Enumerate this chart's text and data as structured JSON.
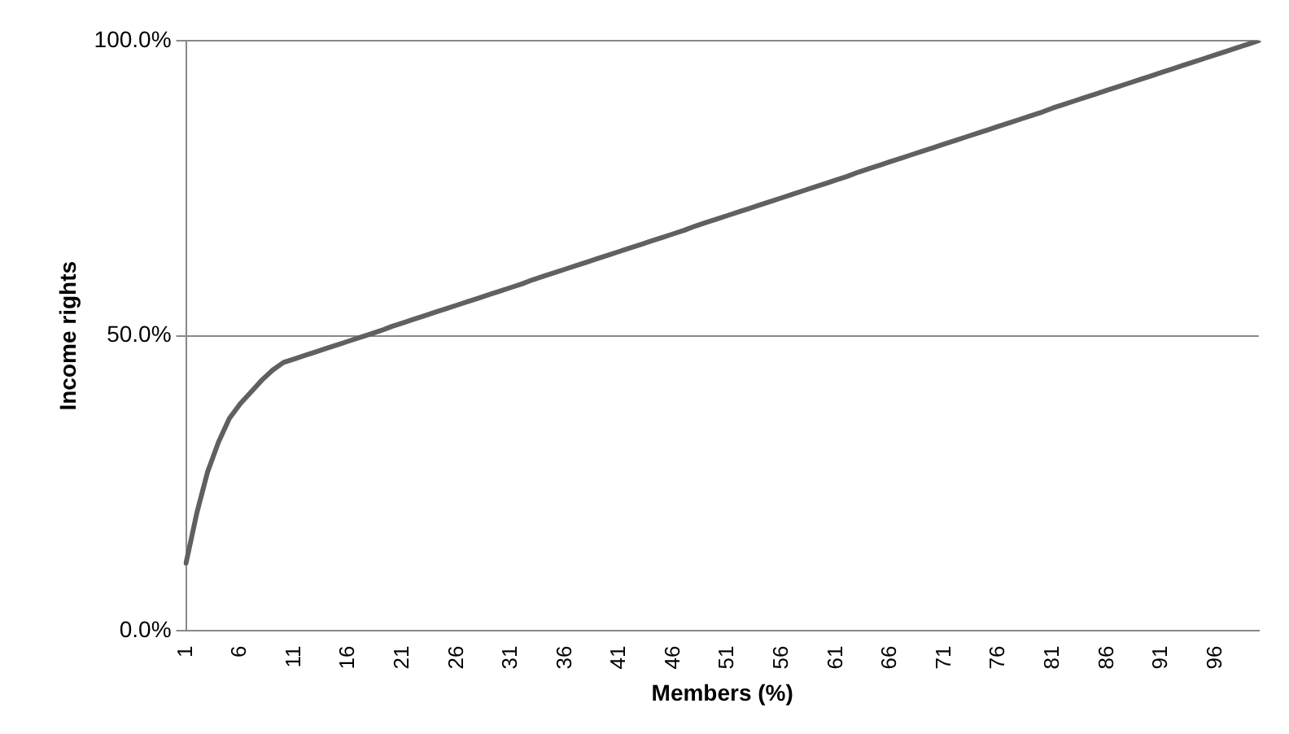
{
  "chart_data": {
    "type": "line",
    "xlabel": "Members (%)",
    "ylabel": "Income rights",
    "categories": [
      "1",
      null,
      null,
      null,
      null,
      "6",
      null,
      null,
      null,
      null,
      "11",
      null,
      null,
      null,
      null,
      "16",
      null,
      null,
      null,
      null,
      "21",
      null,
      null,
      null,
      null,
      "26",
      null,
      null,
      null,
      null,
      "31",
      null,
      null,
      null,
      null,
      "36",
      null,
      null,
      null,
      null,
      "41",
      null,
      null,
      null,
      null,
      "46",
      null,
      null,
      null,
      null,
      "51",
      null,
      null,
      null,
      null,
      "56",
      null,
      null,
      null,
      null,
      "61",
      null,
      null,
      null,
      null,
      "66",
      null,
      null,
      null,
      null,
      "71",
      null,
      null,
      null,
      null,
      "76",
      null,
      null,
      null,
      null,
      "81",
      null,
      null,
      null,
      null,
      "86",
      null,
      null,
      null,
      null,
      "91",
      null,
      null,
      null,
      null,
      "96",
      null,
      null,
      null,
      null
    ],
    "series": [
      {
        "color": "#606060",
        "values": [
          11.5,
          20,
          27,
          32,
          36,
          38.5,
          40.5,
          42.5,
          44.2,
          45.5,
          46.1,
          46.7,
          47.3,
          47.9,
          48.5,
          49.1,
          49.7,
          50.3,
          50.9,
          51.6,
          52.2,
          52.8,
          53.4,
          54.0,
          54.6,
          55.2,
          55.8,
          56.4,
          57.0,
          57.6,
          58.2,
          58.8,
          59.5,
          60.1,
          60.7,
          61.3,
          61.9,
          62.5,
          63.1,
          63.7,
          64.3,
          64.9,
          65.5,
          66.1,
          66.7,
          67.3,
          67.9,
          68.6,
          69.2,
          69.8,
          70.4,
          71.0,
          71.6,
          72.2,
          72.8,
          73.4,
          74.0,
          74.6,
          75.2,
          75.8,
          76.4,
          77.0,
          77.7,
          78.3,
          78.9,
          79.5,
          80.1,
          80.7,
          81.3,
          81.9,
          82.5,
          83.1,
          83.7,
          84.3,
          84.9,
          85.5,
          86.1,
          86.7,
          87.3,
          87.9,
          88.6,
          89.2,
          89.8,
          90.4,
          91.0,
          91.6,
          92.2,
          92.8,
          93.4,
          94.0,
          94.6,
          95.2,
          95.8,
          96.4,
          97.0,
          97.6,
          98.2,
          98.8,
          99.4,
          100.0
        ]
      }
    ],
    "ylim": [
      0,
      100
    ],
    "yticks": [
      {
        "value": 0,
        "label": "0.0%"
      },
      {
        "value": 50,
        "label": "50.0%"
      },
      {
        "value": 100,
        "label": "100.0%"
      }
    ],
    "grid": "y",
    "legend": false,
    "marker": "none",
    "line_style": "solid"
  }
}
